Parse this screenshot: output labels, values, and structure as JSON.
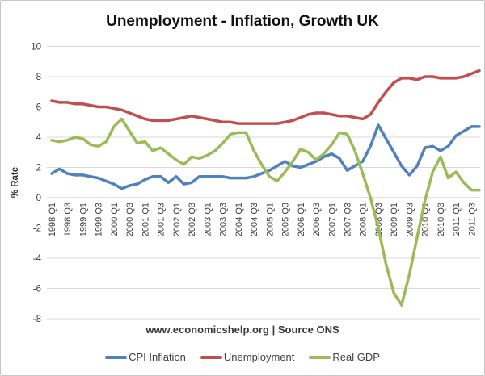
{
  "page": {
    "footer": "www.economicshelp.org | Source ONS"
  },
  "chart_data": {
    "type": "line",
    "title": "Unemployment - Inflation, Growth UK",
    "xlabel": "",
    "ylabel": "% Rate",
    "ylim": [
      -8,
      10
    ],
    "y_ticks": [
      10,
      8,
      6,
      4,
      2,
      0,
      -2,
      -4,
      -6,
      -8
    ],
    "grid": true,
    "gridline_color": "#D9D9D9",
    "axis_line_color": "#BFBFBF",
    "tick_text_color": "#3F3F3F",
    "legend_position": "bottom",
    "x_tick_labels": [
      "1998 Q1",
      "1998 Q3",
      "1999 Q1",
      "1999 Q3",
      "2000 Q1",
      "2000 Q3",
      "2001 Q1",
      "2001 Q3",
      "2002 Q1",
      "2002 Q3",
      "2003 Q1",
      "2003 Q3",
      "2004 Q1",
      "2004 Q3",
      "2005 Q1",
      "2005 Q3",
      "2006 Q1",
      "2006 Q3",
      "2007 Q1",
      "2007 Q3",
      "2008 Q1",
      "2008 Q3",
      "2009 Q1",
      "2009 Q3",
      "2010 Q1",
      "2010 Q3",
      "2011 Q1",
      "2011 Q3"
    ],
    "categories": [
      "1998 Q1",
      "1998 Q2",
      "1998 Q3",
      "1998 Q4",
      "1999 Q1",
      "1999 Q2",
      "1999 Q3",
      "1999 Q4",
      "2000 Q1",
      "2000 Q2",
      "2000 Q3",
      "2000 Q4",
      "2001 Q1",
      "2001 Q2",
      "2001 Q3",
      "2001 Q4",
      "2002 Q1",
      "2002 Q2",
      "2002 Q3",
      "2002 Q4",
      "2003 Q1",
      "2003 Q2",
      "2003 Q3",
      "2003 Q4",
      "2004 Q1",
      "2004 Q2",
      "2004 Q3",
      "2004 Q4",
      "2005 Q1",
      "2005 Q2",
      "2005 Q3",
      "2005 Q4",
      "2006 Q1",
      "2006 Q2",
      "2006 Q3",
      "2006 Q4",
      "2007 Q1",
      "2007 Q2",
      "2007 Q3",
      "2007 Q4",
      "2008 Q1",
      "2008 Q2",
      "2008 Q3",
      "2008 Q4",
      "2009 Q1",
      "2009 Q2",
      "2009 Q3",
      "2009 Q4",
      "2010 Q1",
      "2010 Q2",
      "2010 Q3",
      "2010 Q4",
      "2011 Q1",
      "2011 Q2",
      "2011 Q3",
      "2011 Q4"
    ],
    "series": [
      {
        "name": "CPI Inflation",
        "color": "#4F81BD",
        "values": [
          1.6,
          1.9,
          1.6,
          1.5,
          1.5,
          1.4,
          1.3,
          1.1,
          0.9,
          0.6,
          0.8,
          0.9,
          1.2,
          1.4,
          1.4,
          1.0,
          1.4,
          0.9,
          1.0,
          1.4,
          1.4,
          1.4,
          1.4,
          1.3,
          1.3,
          1.3,
          1.4,
          1.6,
          1.8,
          2.1,
          2.4,
          2.1,
          2.0,
          2.2,
          2.4,
          2.7,
          2.9,
          2.6,
          1.8,
          2.1,
          2.4,
          3.4,
          4.8,
          3.9,
          3.0,
          2.1,
          1.5,
          2.1,
          3.3,
          3.4,
          3.1,
          3.4,
          4.1,
          4.4,
          4.7,
          4.7
        ]
      },
      {
        "name": "Unemployment",
        "color": "#C0504D",
        "values": [
          6.4,
          6.3,
          6.3,
          6.2,
          6.2,
          6.1,
          6.0,
          6.0,
          5.9,
          5.8,
          5.6,
          5.4,
          5.2,
          5.1,
          5.1,
          5.1,
          5.2,
          5.3,
          5.4,
          5.3,
          5.2,
          5.1,
          5.0,
          5.0,
          4.9,
          4.9,
          4.9,
          4.9,
          4.9,
          4.9,
          5.0,
          5.1,
          5.3,
          5.5,
          5.6,
          5.6,
          5.5,
          5.4,
          5.4,
          5.3,
          5.2,
          5.5,
          6.3,
          7.0,
          7.6,
          7.9,
          7.9,
          7.8,
          8.0,
          8.0,
          7.9,
          7.9,
          7.9,
          8.0,
          8.2,
          8.4
        ]
      },
      {
        "name": "Real GDP",
        "color": "#9BBB59",
        "values": [
          3.8,
          3.7,
          3.8,
          4.0,
          3.9,
          3.5,
          3.4,
          3.7,
          4.7,
          5.2,
          4.4,
          3.6,
          3.7,
          3.1,
          3.3,
          2.9,
          2.5,
          2.2,
          2.7,
          2.6,
          2.8,
          3.1,
          3.6,
          4.2,
          4.3,
          4.3,
          3.1,
          2.2,
          1.4,
          1.1,
          1.7,
          2.4,
          3.2,
          3.0,
          2.5,
          2.9,
          3.5,
          4.3,
          4.2,
          3.1,
          1.6,
          0.0,
          -2.0,
          -4.4,
          -6.3,
          -7.1,
          -5.1,
          -2.6,
          -0.2,
          1.7,
          2.7,
          1.3,
          1.7,
          1.0,
          0.5,
          0.5
        ]
      }
    ]
  }
}
